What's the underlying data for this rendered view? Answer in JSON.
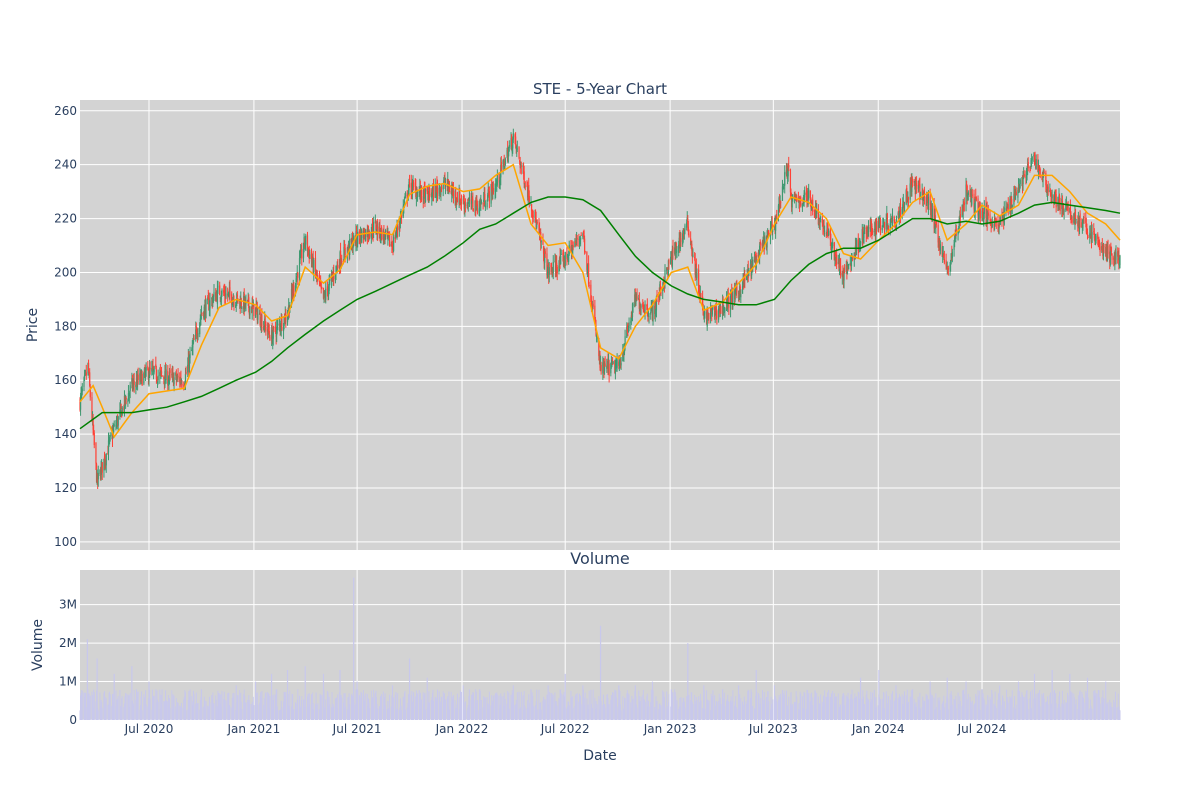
{
  "chart_data": [
    {
      "type": "candlestick",
      "title": "STE - 5-Year Chart",
      "ylabel": "Price",
      "ylim": [
        97,
        264
      ],
      "yticks": [
        100,
        120,
        140,
        160,
        180,
        200,
        220,
        240,
        260
      ],
      "grid": true,
      "colors": {
        "background": "#d3d3d3",
        "increasing": "#3d9970",
        "decreasing": "#ff4136",
        "ma_short": "#ffa500",
        "ma_long": "#008000"
      },
      "series": [
        {
          "kind": "price_close_approx",
          "x": [
            "2020-03-02",
            "2020-03-16",
            "2020-04-01",
            "2020-05-01",
            "2020-06-01",
            "2020-07-01",
            "2020-08-01",
            "2020-09-01",
            "2020-10-01",
            "2020-11-01",
            "2020-12-01",
            "2021-01-04",
            "2021-02-01",
            "2021-03-01",
            "2021-04-01",
            "2021-05-03",
            "2021-06-01",
            "2021-07-01",
            "2021-08-02",
            "2021-09-01",
            "2021-10-01",
            "2021-11-01",
            "2021-12-01",
            "2022-01-03",
            "2022-02-01",
            "2022-03-01",
            "2022-04-01",
            "2022-05-02",
            "2022-06-01",
            "2022-07-01",
            "2022-08-01",
            "2022-09-01",
            "2022-10-03",
            "2022-11-01",
            "2022-12-01",
            "2023-01-03",
            "2023-02-01",
            "2023-03-01",
            "2023-04-03",
            "2023-05-01",
            "2023-06-01",
            "2023-07-03",
            "2023-07-27",
            "2023-08-01",
            "2023-09-01",
            "2023-10-02",
            "2023-11-01",
            "2023-12-01",
            "2024-01-02",
            "2024-02-01",
            "2024-03-01",
            "2024-04-01",
            "2024-05-01",
            "2024-06-03",
            "2024-07-01",
            "2024-08-01",
            "2024-09-03",
            "2024-10-01",
            "2024-11-01",
            "2024-12-02",
            "2025-01-02",
            "2025-02-03",
            "2025-02-28"
          ],
          "y": [
            152,
            165,
            122,
            142,
            158,
            163,
            161,
            160,
            185,
            193,
            190,
            186,
            176,
            185,
            212,
            190,
            205,
            213,
            217,
            210,
            232,
            228,
            233,
            226,
            225,
            232,
            250,
            226,
            200,
            205,
            215,
            164,
            165,
            190,
            185,
            205,
            218,
            183,
            187,
            193,
            205,
            218,
            240,
            226,
            228,
            215,
            198,
            213,
            218,
            220,
            233,
            225,
            200,
            230,
            222,
            218,
            232,
            242,
            228,
            222,
            216,
            207,
            205
          ]
        },
        {
          "name": "",
          "kind": "ma_short",
          "x": [
            "2020-03-02",
            "2020-03-25",
            "2020-04-10",
            "2020-05-01",
            "2020-06-01",
            "2020-07-01",
            "2020-08-01",
            "2020-09-01",
            "2020-10-01",
            "2020-11-01",
            "2020-12-01",
            "2021-01-04",
            "2021-02-01",
            "2021-03-01",
            "2021-04-01",
            "2021-05-03",
            "2021-06-01",
            "2021-07-01",
            "2021-08-02",
            "2021-09-01",
            "2021-10-01",
            "2021-11-01",
            "2021-12-01",
            "2022-01-03",
            "2022-02-01",
            "2022-03-01",
            "2022-04-01",
            "2022-05-02",
            "2022-06-01",
            "2022-07-01",
            "2022-08-01",
            "2022-09-01",
            "2022-10-03",
            "2022-11-01",
            "2022-12-01",
            "2023-01-03",
            "2023-02-01",
            "2023-03-01",
            "2023-04-03",
            "2023-05-01",
            "2023-06-01",
            "2023-07-03",
            "2023-08-01",
            "2023-09-01",
            "2023-10-02",
            "2023-11-01",
            "2023-12-01",
            "2024-01-02",
            "2024-02-01",
            "2024-03-01",
            "2024-04-01",
            "2024-05-01",
            "2024-06-03",
            "2024-07-01",
            "2024-08-01",
            "2024-09-03",
            "2024-10-01",
            "2024-11-01",
            "2024-12-02",
            "2025-01-02",
            "2025-02-03",
            "2025-02-28"
          ],
          "y": [
            152,
            158,
            150,
            139,
            148,
            155,
            156,
            157,
            173,
            187,
            190,
            188,
            182,
            184,
            202,
            196,
            201,
            214,
            215,
            214,
            229,
            232,
            233,
            230,
            231,
            236,
            240,
            218,
            210,
            211,
            200,
            172,
            168,
            180,
            188,
            200,
            202,
            186,
            189,
            196,
            203,
            218,
            228,
            226,
            220,
            207,
            205,
            212,
            218,
            226,
            230,
            212,
            218,
            225,
            221,
            225,
            236,
            236,
            230,
            222,
            218,
            212
          ]
        },
        {
          "name": "",
          "kind": "ma_long",
          "x": [
            "2020-03-02",
            "2020-04-10",
            "2020-05-01",
            "2020-06-01",
            "2020-07-01",
            "2020-08-01",
            "2020-09-01",
            "2020-10-01",
            "2020-11-01",
            "2020-12-01",
            "2021-01-04",
            "2021-02-01",
            "2021-03-01",
            "2021-04-01",
            "2021-05-03",
            "2021-06-01",
            "2021-07-01",
            "2021-08-02",
            "2021-09-01",
            "2021-10-01",
            "2021-11-01",
            "2021-12-01",
            "2022-01-03",
            "2022-02-01",
            "2022-03-01",
            "2022-04-01",
            "2022-05-02",
            "2022-06-01",
            "2022-07-01",
            "2022-08-01",
            "2022-09-01",
            "2022-10-03",
            "2022-11-01",
            "2022-12-01",
            "2023-01-03",
            "2023-02-01",
            "2023-03-01",
            "2023-04-03",
            "2023-05-01",
            "2023-06-01",
            "2023-07-03",
            "2023-08-01",
            "2023-09-01",
            "2023-10-02",
            "2023-11-01",
            "2023-12-01",
            "2024-01-02",
            "2024-02-01",
            "2024-03-01",
            "2024-04-01",
            "2024-05-01",
            "2024-06-03",
            "2024-07-01",
            "2024-08-01",
            "2024-09-03",
            "2024-10-01",
            "2024-11-01",
            "2024-12-02",
            "2025-01-02",
            "2025-02-03",
            "2025-02-28"
          ],
          "y": [
            142,
            148,
            148,
            148,
            149,
            150,
            152,
            154,
            157,
            160,
            163,
            167,
            172,
            177,
            182,
            186,
            190,
            193,
            196,
            199,
            202,
            206,
            211,
            216,
            218,
            222,
            226,
            228,
            228,
            227,
            223,
            214,
            206,
            200,
            195,
            192,
            190,
            189,
            188,
            188,
            190,
            197,
            203,
            207,
            209,
            209,
            212,
            216,
            220,
            220,
            218,
            219,
            218,
            219,
            222,
            225,
            226,
            225,
            224,
            223,
            222
          ]
        }
      ]
    },
    {
      "type": "bar",
      "title": "Volume",
      "xlabel": "Date",
      "ylabel": "Volume",
      "ylim": [
        0,
        3900000
      ],
      "yticks": [
        0,
        1000000,
        2000000,
        3000000
      ],
      "ytick_labels": [
        "0",
        "1M",
        "2M",
        "3M"
      ],
      "xticks": [
        "2020-07-01",
        "2021-01-01",
        "2021-07-01",
        "2022-01-01",
        "2022-07-01",
        "2023-01-01",
        "2023-07-01",
        "2024-01-01",
        "2024-07-01"
      ],
      "xtick_labels": [
        "Jul 2020",
        "Jan 2021",
        "Jul 2021",
        "Jan 2022",
        "Jul 2022",
        "Jan 2023",
        "Jul 2023",
        "Jan 2024",
        "Jul 2024"
      ],
      "xlim": [
        "2020-03-02",
        "2025-02-28"
      ],
      "grid": true,
      "colors": {
        "background": "#d3d3d3",
        "bar": "#c8c8ec"
      },
      "x": [
        "2020-03-15",
        "2020-04-01",
        "2020-05-01",
        "2020-06-01",
        "2020-07-01",
        "2020-08-01",
        "2020-09-01",
        "2020-10-01",
        "2020-11-01",
        "2020-12-01",
        "2021-01-04",
        "2021-02-01",
        "2021-03-01",
        "2021-04-01",
        "2021-05-03",
        "2021-06-01",
        "2021-06-25",
        "2021-07-01",
        "2021-08-02",
        "2021-09-01",
        "2021-10-01",
        "2021-11-01",
        "2021-12-01",
        "2022-01-03",
        "2022-02-01",
        "2022-03-01",
        "2022-04-01",
        "2022-05-02",
        "2022-06-01",
        "2022-07-01",
        "2022-08-01",
        "2022-09-01",
        "2022-10-03",
        "2022-11-01",
        "2022-12-01",
        "2023-01-03",
        "2023-02-01",
        "2023-03-01",
        "2023-04-03",
        "2023-05-01",
        "2023-06-01",
        "2023-07-03",
        "2023-08-01",
        "2023-09-01",
        "2023-10-02",
        "2023-11-01",
        "2023-12-01",
        "2024-01-02",
        "2024-02-01",
        "2024-03-01",
        "2024-04-01",
        "2024-05-01",
        "2024-06-03",
        "2024-07-01",
        "2024-08-01",
        "2024-09-03",
        "2024-10-01",
        "2024-11-01",
        "2024-12-02",
        "2025-01-02",
        "2025-02-03"
      ],
      "values": [
        2100000,
        1600000,
        1200000,
        1400000,
        1000000,
        500000,
        600000,
        800000,
        700000,
        900000,
        1000000,
        1200000,
        1300000,
        1400000,
        1200000,
        1300000,
        3700000,
        1000000,
        700000,
        900000,
        1600000,
        1100000,
        700000,
        900000,
        800000,
        700000,
        900000,
        800000,
        900000,
        1200000,
        900000,
        2450000,
        900000,
        900000,
        1000000,
        800000,
        2000000,
        900000,
        800000,
        900000,
        1300000,
        900000,
        700000,
        700000,
        600000,
        700000,
        1100000,
        1300000,
        900000,
        800000,
        1000000,
        1100000,
        1000000,
        800000,
        900000,
        1000000,
        1200000,
        1300000,
        1200000,
        1100000,
        1000000
      ]
    }
  ]
}
